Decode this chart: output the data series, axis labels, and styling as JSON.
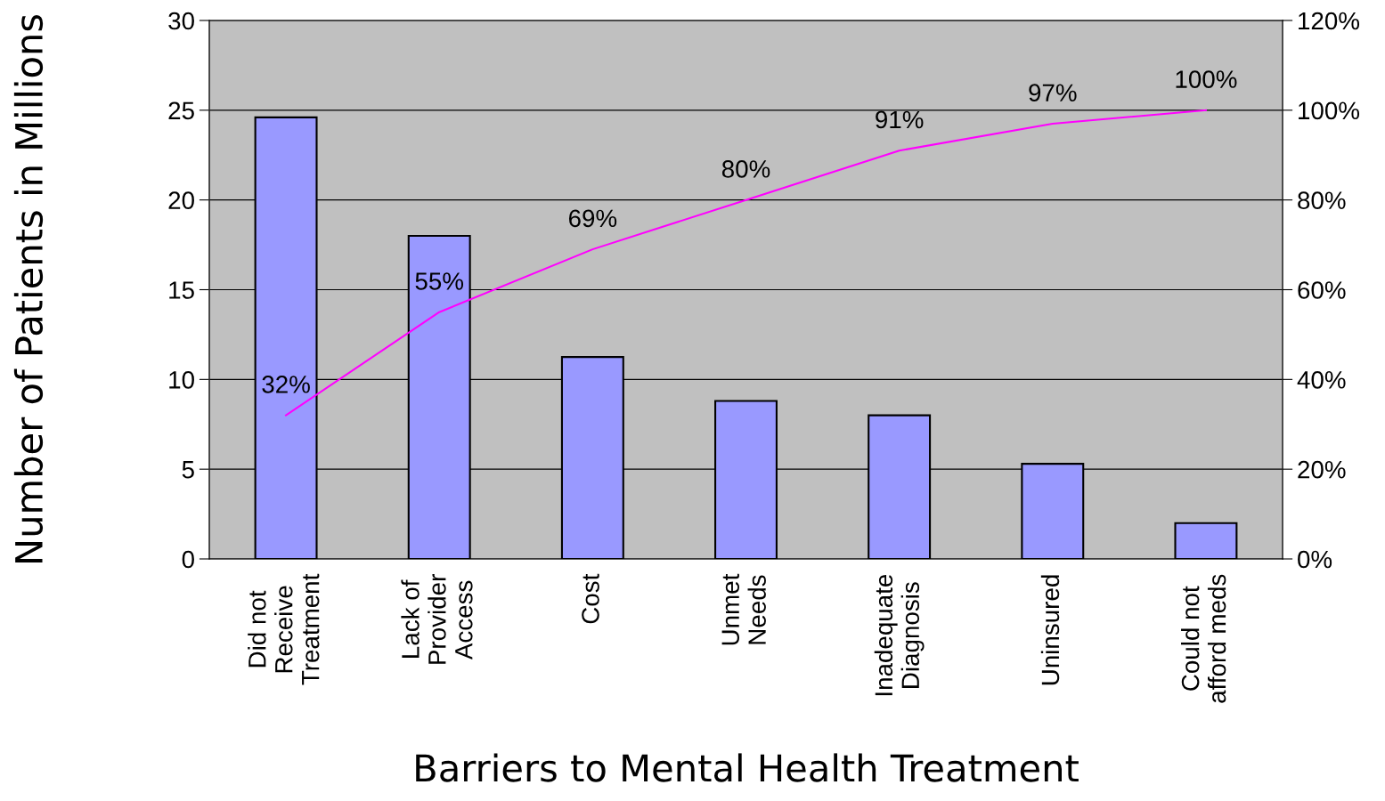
{
  "chart_data": {
    "type": "bar",
    "xlabel": "Barriers to Mental Health Treatment",
    "ylabel": "Number of Patients in Millions",
    "categories": [
      "Did not\nReceive\nTreatment",
      "Lack of\nProvider\nAccess",
      "Cost",
      "Unmet\nNeeds",
      "Inadequate\nDiagnosis",
      "Uninsured",
      "Could not\nafford meds"
    ],
    "series": [
      {
        "color": "#9999ff",
        "values": [
          24.6,
          18,
          11.25,
          8.8,
          8,
          5.3,
          2
        ]
      },
      {
        "type": "line",
        "axis": "y2",
        "color": "#ff00ff",
        "values": [
          32,
          55,
          69,
          80,
          91,
          97,
          100
        ],
        "value_labels": [
          "32%",
          "55%",
          "69%",
          "80%",
          "91%",
          "97%",
          "100%"
        ]
      }
    ],
    "ylim": [
      0,
      30
    ],
    "yticks": [
      0,
      5,
      10,
      15,
      20,
      25,
      30
    ],
    "y2lim": [
      0,
      120
    ],
    "y2ticks": [
      {
        "value": 0,
        "label": "0%"
      },
      {
        "value": 20,
        "label": "20%"
      },
      {
        "value": 40,
        "label": "40%"
      },
      {
        "value": 60,
        "label": "60%"
      },
      {
        "value": 80,
        "label": "80%"
      },
      {
        "value": 100,
        "label": "100%"
      },
      {
        "value": 120,
        "label": "120%"
      }
    ],
    "grid": "y",
    "marker": "none",
    "line_style": "solid"
  }
}
